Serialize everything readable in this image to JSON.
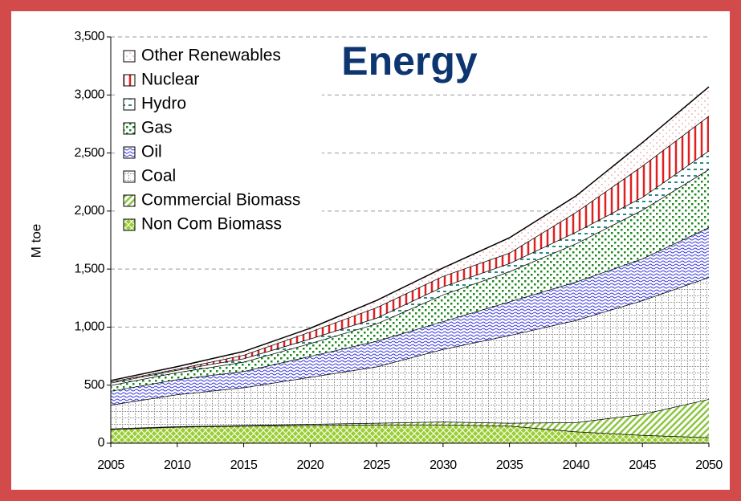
{
  "chart_data": {
    "type": "stacked_area",
    "annotation": "Energy",
    "y_label": "M toe",
    "x": [
      2005,
      2010,
      2015,
      2020,
      2025,
      2030,
      2035,
      2040,
      2045,
      2050
    ],
    "xlim": [
      2005,
      2050
    ],
    "xticks": [
      2005,
      2010,
      2015,
      2020,
      2025,
      2030,
      2035,
      2040,
      2045,
      2050
    ],
    "ylim": [
      0,
      3500
    ],
    "yticks": [
      0,
      500,
      {
        "value": 1000,
        "label": "1,000"
      },
      {
        "value": 1500,
        "label": "1,500"
      },
      {
        "value": 2000,
        "label": "2,000"
      },
      {
        "value": 2500,
        "label": "2,500"
      },
      {
        "value": 3000,
        "label": "3,000"
      },
      {
        "value": 3500,
        "label": "3,500"
      }
    ],
    "grid": true,
    "legend": "upper left",
    "series": [
      {
        "name": "Non Com Biomass",
        "color": "#9acd32",
        "values": [
          120,
          140,
          150,
          155,
          160,
          160,
          150,
          100,
          70,
          50
        ]
      },
      {
        "name": "Commercial Biomass",
        "color": "#8cc63f",
        "values": [
          5,
          5,
          5,
          10,
          15,
          25,
          25,
          80,
          180,
          330
        ]
      },
      {
        "name": "Coal",
        "color": "#808080",
        "values": [
          205,
          275,
          325,
          405,
          485,
          625,
          755,
          880,
          980,
          1050
        ]
      },
      {
        "name": "Oil",
        "color": "#3333dd",
        "values": [
          120,
          130,
          140,
          180,
          220,
          240,
          290,
          330,
          360,
          430
        ]
      },
      {
        "name": "Gas",
        "color": "#1a8a1a",
        "values": [
          50,
          60,
          80,
          110,
          150,
          230,
          260,
          330,
          420,
          500
        ]
      },
      {
        "name": "Hydro",
        "color": "#2a8a8a",
        "values": [
          20,
          20,
          30,
          40,
          50,
          70,
          70,
          100,
          110,
          160
        ]
      },
      {
        "name": "Nuclear",
        "color": "#e02020",
        "values": [
          10,
          10,
          30,
          60,
          90,
          90,
          90,
          170,
          270,
          300
        ]
      },
      {
        "name": "Other Renewables",
        "color": "#e88a8a",
        "values": [
          10,
          20,
          30,
          30,
          60,
          70,
          130,
          140,
          200,
          250
        ]
      }
    ]
  }
}
